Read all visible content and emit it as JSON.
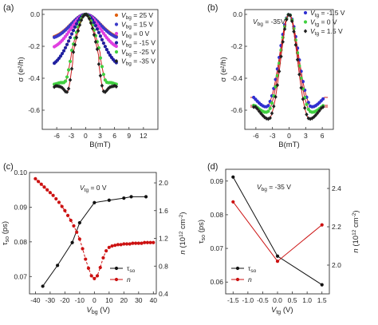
{
  "chart_data": [
    {
      "panel": "(a)",
      "type": "scatter",
      "xlabel": "B(mT)",
      "ylabel": "σ (e²/h)",
      "xlim": [
        -9,
        15
      ],
      "ylim": [
        -0.72,
        0.03
      ],
      "xticks": [
        "-6",
        "-3",
        "0",
        "3",
        "6",
        "9",
        "12"
      ],
      "yticks": [
        "0.0",
        "-0.2",
        "-0.4",
        "-0.6"
      ],
      "legend_title": "V_bg",
      "series": [
        {
          "name": "= 25 V",
          "color": "#e06010",
          "marker": "circle",
          "depth": -0.155,
          "min_field": 4.5,
          "dip": 0.0
        },
        {
          "name": "= 15 V",
          "color": "#3a3ac8",
          "marker": "circle",
          "depth": -0.16,
          "min_field": 4.5,
          "dip": 0.0
        },
        {
          "name": "= 0 V",
          "color": "#e040e0",
          "marker": "circle",
          "depth": -0.225,
          "min_field": 4.5,
          "dip": 0.0
        },
        {
          "name": "= -15 V",
          "color": "#2020a0",
          "marker": "circle",
          "depth": -0.34,
          "min_field": 4.5,
          "dip": 0.0
        },
        {
          "name": "= -25 V",
          "color": "#40d040",
          "marker": "circle",
          "depth": -0.52,
          "min_field": 4.0,
          "dip": 0.06
        },
        {
          "name": "= -35 V",
          "color": "#202020",
          "marker": "diamond",
          "depth": -0.56,
          "min_field": 3.6,
          "dip": 0.1
        }
      ]
    },
    {
      "panel": "(b)",
      "type": "scatter",
      "annotation": "V_bg = -35V",
      "xlabel": "B(mT)",
      "ylabel": "σ (e²/h)",
      "xlim": [
        -8,
        8
      ],
      "ylim": [
        -0.72,
        0.03
      ],
      "xticks": [
        "-6",
        "-3",
        "0",
        "3",
        "6"
      ],
      "yticks": [
        "0.0",
        "-0.2",
        "-0.4",
        "-0.6"
      ],
      "legend_title": "V_tg",
      "series": [
        {
          "name": "= -1.5 V",
          "color": "#3030d0",
          "marker": "circle",
          "depth": -0.62,
          "min_field": 3.8,
          "recover": 0.1
        },
        {
          "name": "= 0 V",
          "color": "#40d040",
          "marker": "circle",
          "depth": -0.65,
          "min_field": 3.6,
          "recover": 0.08
        },
        {
          "name": "= 1.5 V",
          "color": "#202020",
          "marker": "diamond",
          "depth": -0.7,
          "min_field": 3.4,
          "recover": 0.12
        }
      ]
    },
    {
      "panel": "(c)",
      "type": "line",
      "annotation": "V_tg = 0 V",
      "xlabel": "V_bg (V)",
      "ylabel": "τ_so (ps)",
      "y2label": "n (10¹² cm⁻²)",
      "xlim": [
        -44,
        42
      ],
      "ylim": [
        0.065,
        0.1
      ],
      "y2lim": [
        0.4,
        2.15
      ],
      "xticks": [
        "-40",
        "-30",
        "-20",
        "-10",
        "0",
        "10",
        "20",
        "30",
        "40"
      ],
      "yticks": [
        "0.07",
        "0.08",
        "0.09",
        "0.10"
      ],
      "y2ticks": [
        "0.4",
        "0.8",
        "1.2",
        "1.6",
        "2.0"
      ],
      "series": [
        {
          "name": "τ_so",
          "color": "#111111",
          "axis": "left",
          "style": "solid",
          "x": [
            -35,
            -25,
            -15,
            -10,
            0,
            10,
            20,
            25,
            35
          ],
          "y": [
            0.0672,
            0.0732,
            0.0798,
            0.0855,
            0.0913,
            0.092,
            0.0926,
            0.093,
            0.093
          ]
        },
        {
          "name": "n",
          "color": "#cc1111",
          "axis": "right",
          "style": "dashed",
          "x": [
            -40,
            -38,
            -36,
            -34,
            -32,
            -30,
            -28,
            -26,
            -24,
            -22,
            -20,
            -18,
            -16,
            -14,
            -12,
            -10,
            -8,
            -6,
            -4,
            -2,
            0,
            2,
            4,
            6,
            8,
            10,
            12,
            14,
            16,
            18,
            20,
            22,
            24,
            26,
            28,
            30,
            32,
            34,
            36,
            38,
            40
          ],
          "y": [
            2.06,
            2.02,
            1.98,
            1.94,
            1.9,
            1.86,
            1.82,
            1.77,
            1.72,
            1.66,
            1.6,
            1.53,
            1.46,
            1.38,
            1.29,
            1.19,
            1.05,
            0.9,
            0.77,
            0.66,
            0.62,
            0.66,
            0.78,
            0.92,
            1.02,
            1.07,
            1.09,
            1.1,
            1.11,
            1.11,
            1.12,
            1.12,
            1.12,
            1.13,
            1.13,
            1.13,
            1.13,
            1.14,
            1.14,
            1.14,
            1.14
          ]
        }
      ]
    },
    {
      "panel": "(d)",
      "type": "line",
      "annotation": "V_bg = -35 V",
      "xlabel": "V_tg (V)",
      "ylabel": "τ_so (ps)",
      "y2label": "n (10¹² cm⁻²)",
      "xlim": [
        -1.75,
        1.75
      ],
      "ylim": [
        0.0565,
        0.0935
      ],
      "y2lim": [
        1.85,
        2.5
      ],
      "xticks": [
        "-1.5",
        "-1.0",
        "-0.5",
        "0.0",
        "0.5",
        "1.0",
        "1.5"
      ],
      "yticks": [
        "0.06",
        "0.07",
        "0.08",
        "0.09"
      ],
      "y2ticks": [
        "2.0",
        "2.2",
        "2.4"
      ],
      "series": [
        {
          "name": "τ_so",
          "color": "#111111",
          "axis": "left",
          "style": "solid",
          "x": [
            -1.5,
            0,
            1.5
          ],
          "y": [
            0.0912,
            0.0677,
            0.0592
          ]
        },
        {
          "name": "n",
          "color": "#cc1111",
          "axis": "right",
          "style": "solid",
          "x": [
            -1.5,
            0,
            1.5
          ],
          "y": [
            2.33,
            2.02,
            2.21
          ]
        }
      ]
    }
  ]
}
